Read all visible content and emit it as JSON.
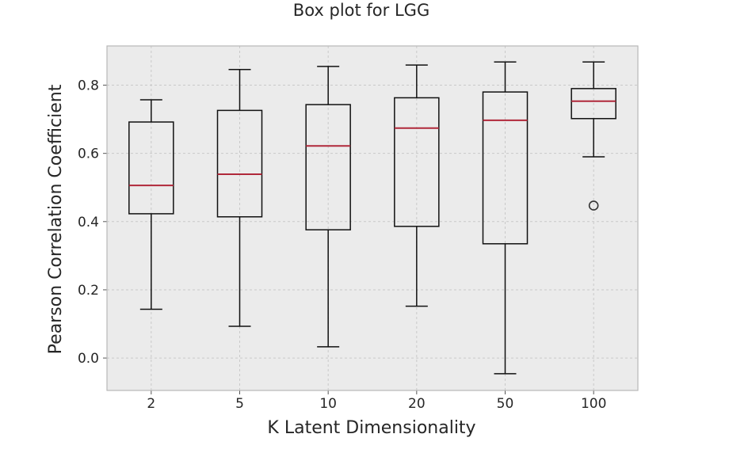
{
  "chart_data": {
    "type": "box",
    "title": "Box plot for LGG",
    "xlabel": "K Latent Dimensionality",
    "ylabel": "Pearson Correlation Coefficient",
    "categories": [
      "2",
      "5",
      "10",
      "20",
      "50",
      "100"
    ],
    "ylim": [
      -0.095,
      0.915
    ],
    "yticks": [
      0.0,
      0.2,
      0.4,
      0.6,
      0.8
    ],
    "ytick_labels": [
      "0.0",
      "0.2",
      "0.4",
      "0.6",
      "0.8"
    ],
    "grid": true,
    "boxes": [
      {
        "category": "2",
        "whisker_low": 0.143,
        "q1": 0.423,
        "median": 0.506,
        "q3": 0.692,
        "whisker_high": 0.757,
        "outliers": []
      },
      {
        "category": "5",
        "whisker_low": 0.093,
        "q1": 0.414,
        "median": 0.539,
        "q3": 0.726,
        "whisker_high": 0.846,
        "outliers": []
      },
      {
        "category": "10",
        "whisker_low": 0.033,
        "q1": 0.376,
        "median": 0.622,
        "q3": 0.743,
        "whisker_high": 0.855,
        "outliers": []
      },
      {
        "category": "20",
        "whisker_low": 0.152,
        "q1": 0.386,
        "median": 0.674,
        "q3": 0.763,
        "whisker_high": 0.859,
        "outliers": []
      },
      {
        "category": "50",
        "whisker_low": -0.046,
        "q1": 0.335,
        "median": 0.697,
        "q3": 0.78,
        "whisker_high": 0.868,
        "outliers": []
      },
      {
        "category": "100",
        "whisker_low": 0.59,
        "q1": 0.702,
        "median": 0.753,
        "q3": 0.79,
        "whisker_high": 0.868,
        "outliers": [
          0.447
        ]
      }
    ],
    "colors": {
      "plot_background": "#ebebeb",
      "grid": "#c9c9c9",
      "box_edge": "#111111",
      "median": "#b0283a",
      "spine": "#b8b8b8"
    }
  }
}
